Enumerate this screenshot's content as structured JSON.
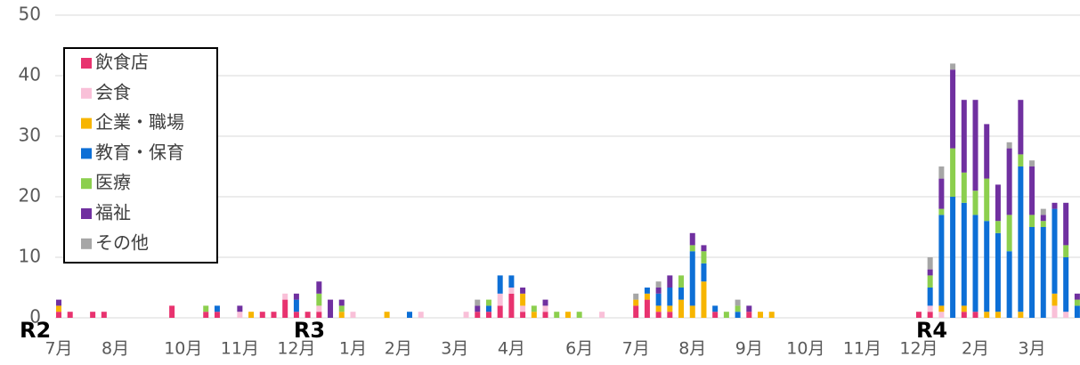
{
  "chart_data": {
    "type": "stacked_bar",
    "categories": [
      "7月",
      null,
      null,
      null,
      null,
      "8月",
      null,
      null,
      null,
      null,
      null,
      "10月",
      null,
      null,
      null,
      null,
      "11月",
      null,
      null,
      null,
      null,
      "12月",
      null,
      null,
      null,
      null,
      "1月",
      null,
      null,
      null,
      "2月",
      null,
      null,
      null,
      null,
      "3月",
      null,
      null,
      null,
      null,
      "4月",
      null,
      null,
      null,
      null,
      null,
      "6月",
      null,
      null,
      null,
      null,
      "7月",
      null,
      null,
      null,
      null,
      "8月",
      null,
      null,
      null,
      null,
      "9月",
      null,
      null,
      null,
      null,
      "10月",
      null,
      null,
      null,
      null,
      "11月",
      null,
      null,
      null,
      null,
      "12月",
      null,
      null,
      null,
      null,
      "2月",
      null,
      null,
      null,
      null,
      "3月",
      null,
      null,
      null,
      null
    ],
    "category_groups": [
      "R2",
      null,
      null,
      null,
      null,
      null,
      null,
      null,
      null,
      null,
      null,
      null,
      null,
      null,
      null,
      null,
      null,
      null,
      null,
      null,
      null,
      "R3",
      null,
      null,
      null,
      null,
      null,
      null,
      null,
      null,
      null,
      null,
      null,
      null,
      null,
      null,
      null,
      null,
      null,
      null,
      null,
      null,
      null,
      null,
      null,
      null,
      null,
      null,
      null,
      null,
      null,
      null,
      null,
      null,
      null,
      null,
      null,
      null,
      null,
      null,
      null,
      null,
      null,
      null,
      null,
      null,
      null,
      null,
      null,
      null,
      null,
      null,
      null,
      null,
      null,
      null,
      "R4",
      null,
      null,
      null,
      null,
      null,
      null,
      null,
      null,
      null,
      null,
      null,
      null,
      null,
      null
    ],
    "series": [
      {
        "name": "飲食店",
        "color": "#e8336f",
        "values": [
          1,
          1,
          0,
          1,
          1,
          0,
          0,
          0,
          0,
          0,
          2,
          0,
          0,
          1,
          1,
          0,
          0,
          0,
          1,
          1,
          3,
          1,
          1,
          1,
          0,
          0,
          0,
          0,
          0,
          0,
          0,
          0,
          0,
          0,
          0,
          0,
          0,
          1,
          1,
          2,
          4,
          1,
          0,
          1,
          0,
          0,
          0,
          0,
          0,
          0,
          0,
          2,
          3,
          1,
          1,
          0,
          0,
          0,
          1,
          0,
          0,
          1,
          0,
          0,
          0,
          0,
          0,
          0,
          0,
          0,
          0,
          0,
          0,
          0,
          0,
          0,
          1,
          1,
          0,
          0,
          1,
          1,
          0,
          0,
          0,
          0,
          0,
          0,
          0,
          0,
          0
        ]
      },
      {
        "name": "会食",
        "color": "#f9c0d8",
        "values": [
          0,
          0,
          0,
          0,
          0,
          0,
          0,
          0,
          0,
          0,
          0,
          0,
          0,
          0,
          0,
          0,
          1,
          0,
          0,
          0,
          1,
          0,
          0,
          1,
          0,
          0,
          1,
          0,
          0,
          0,
          0,
          0,
          1,
          0,
          0,
          0,
          1,
          0,
          0,
          2,
          1,
          1,
          0,
          1,
          0,
          0,
          0,
          0,
          1,
          0,
          0,
          0,
          0,
          0,
          0,
          0,
          0,
          0,
          0,
          0,
          0,
          0,
          0,
          0,
          0,
          0,
          0,
          0,
          0,
          0,
          0,
          0,
          0,
          0,
          0,
          0,
          0,
          1,
          1,
          0,
          0,
          0,
          0,
          0,
          0,
          0,
          0,
          0,
          2,
          1,
          0
        ]
      },
      {
        "name": "企業・職場",
        "color": "#f7b500",
        "values": [
          1,
          0,
          0,
          0,
          0,
          0,
          0,
          0,
          0,
          0,
          0,
          0,
          0,
          0,
          0,
          0,
          0,
          1,
          0,
          0,
          0,
          0,
          0,
          0,
          0,
          1,
          0,
          0,
          0,
          1,
          0,
          0,
          0,
          0,
          0,
          0,
          0,
          0,
          0,
          0,
          0,
          2,
          1,
          0,
          0,
          1,
          0,
          0,
          0,
          0,
          0,
          1,
          1,
          1,
          1,
          3,
          2,
          6,
          0,
          0,
          0,
          0,
          1,
          1,
          0,
          0,
          0,
          0,
          0,
          0,
          0,
          0,
          0,
          0,
          0,
          0,
          0,
          0,
          1,
          0,
          1,
          0,
          1,
          1,
          0,
          1,
          0,
          0,
          2,
          0,
          0
        ]
      },
      {
        "name": "教育・保育",
        "color": "#0d6fd6",
        "values": [
          0,
          0,
          0,
          0,
          0,
          0,
          0,
          0,
          0,
          0,
          0,
          0,
          0,
          0,
          1,
          0,
          0,
          0,
          0,
          0,
          0,
          2,
          0,
          0,
          0,
          0,
          0,
          0,
          0,
          0,
          0,
          1,
          0,
          0,
          0,
          0,
          0,
          0,
          1,
          3,
          2,
          0,
          0,
          0,
          0,
          0,
          0,
          0,
          0,
          0,
          0,
          0,
          1,
          2,
          3,
          2,
          9,
          3,
          1,
          0,
          1,
          0,
          0,
          0,
          0,
          0,
          0,
          0,
          0,
          0,
          0,
          0,
          0,
          0,
          0,
          0,
          0,
          3,
          15,
          20,
          17,
          16,
          15,
          13,
          11,
          24,
          15,
          15,
          14,
          9,
          2
        ]
      },
      {
        "name": "医療",
        "color": "#8ccf4e",
        "values": [
          0,
          0,
          0,
          0,
          0,
          0,
          0,
          0,
          0,
          0,
          0,
          0,
          0,
          1,
          0,
          0,
          0,
          0,
          0,
          0,
          0,
          0,
          0,
          2,
          0,
          1,
          0,
          0,
          0,
          0,
          0,
          0,
          0,
          0,
          0,
          0,
          0,
          0,
          1,
          0,
          0,
          0,
          1,
          0,
          1,
          0,
          1,
          0,
          0,
          0,
          0,
          0,
          0,
          0,
          0,
          2,
          1,
          2,
          0,
          1,
          1,
          0,
          0,
          0,
          0,
          0,
          0,
          0,
          0,
          0,
          0,
          0,
          0,
          0,
          0,
          0,
          0,
          2,
          1,
          8,
          5,
          4,
          7,
          2,
          6,
          2,
          2,
          1,
          0,
          2,
          1
        ]
      },
      {
        "name": "福祉",
        "color": "#7030a0",
        "values": [
          1,
          0,
          0,
          0,
          0,
          0,
          0,
          0,
          0,
          0,
          0,
          0,
          0,
          0,
          0,
          0,
          1,
          0,
          0,
          0,
          0,
          1,
          0,
          2,
          3,
          1,
          0,
          0,
          0,
          0,
          0,
          0,
          0,
          0,
          0,
          0,
          0,
          1,
          0,
          0,
          0,
          1,
          0,
          1,
          0,
          0,
          0,
          0,
          0,
          0,
          0,
          0,
          0,
          1,
          2,
          0,
          2,
          1,
          0,
          0,
          0,
          1,
          0,
          0,
          0,
          0,
          0,
          0,
          0,
          0,
          0,
          0,
          0,
          0,
          0,
          0,
          0,
          1,
          5,
          13,
          12,
          15,
          9,
          6,
          11,
          9,
          8,
          1,
          1,
          7,
          1
        ]
      },
      {
        "name": "その他",
        "color": "#a6a6a6",
        "values": [
          0,
          0,
          0,
          0,
          0,
          0,
          0,
          0,
          0,
          0,
          0,
          0,
          0,
          0,
          0,
          0,
          0,
          0,
          0,
          0,
          0,
          0,
          0,
          0,
          0,
          0,
          0,
          0,
          0,
          0,
          0,
          0,
          0,
          0,
          0,
          0,
          0,
          1,
          0,
          0,
          0,
          0,
          0,
          0,
          0,
          0,
          0,
          0,
          0,
          0,
          0,
          1,
          0,
          1,
          0,
          0,
          0,
          0,
          0,
          0,
          1,
          0,
          0,
          0,
          0,
          0,
          0,
          0,
          0,
          0,
          0,
          0,
          0,
          0,
          0,
          0,
          0,
          2,
          2,
          1,
          0,
          0,
          0,
          0,
          1,
          0,
          1,
          1,
          0,
          0,
          0
        ]
      }
    ],
    "ylim": [
      0,
      50
    ],
    "yticks": [
      0,
      10,
      20,
      30,
      40,
      50
    ],
    "grid": true,
    "legend": "upper left"
  }
}
